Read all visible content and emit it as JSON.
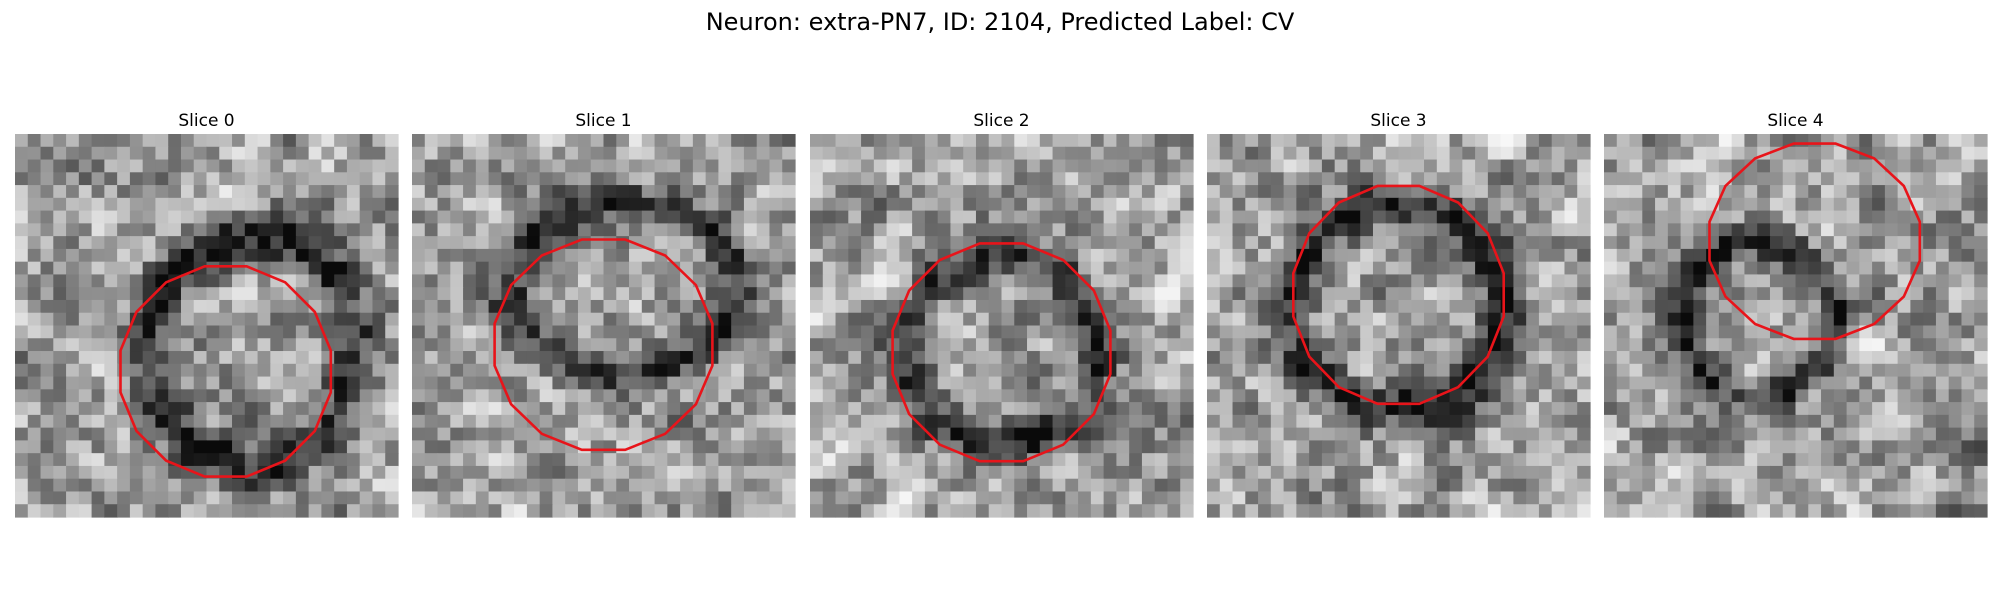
{
  "figure": {
    "title": "Neuron: extra-PN7, ID: 2104, Predicted Label: CV"
  },
  "panels": [
    {
      "title": "Slice 0",
      "contour_center": [
        0.55,
        0.62
      ],
      "contour_radius": [
        0.28,
        0.28
      ],
      "ring_center": [
        0.62,
        0.56
      ],
      "ring_radius": [
        0.27,
        0.3
      ]
    },
    {
      "title": "Slice 1",
      "contour_center": [
        0.5,
        0.55
      ],
      "contour_radius": [
        0.29,
        0.28
      ],
      "ring_center": [
        0.55,
        0.4
      ],
      "ring_radius": [
        0.3,
        0.22
      ]
    },
    {
      "title": "Slice 2",
      "contour_center": [
        0.5,
        0.57
      ],
      "contour_radius": [
        0.29,
        0.29
      ],
      "ring_center": [
        0.5,
        0.56
      ],
      "ring_radius": [
        0.25,
        0.25
      ]
    },
    {
      "title": "Slice 3",
      "contour_center": [
        0.5,
        0.42
      ],
      "contour_radius": [
        0.28,
        0.29
      ],
      "ring_center": [
        0.5,
        0.45
      ],
      "ring_radius": [
        0.28,
        0.27
      ]
    },
    {
      "title": "Slice 4",
      "contour_center": [
        0.55,
        0.28
      ],
      "contour_radius": [
        0.28,
        0.26
      ],
      "ring_center": [
        0.4,
        0.48
      ],
      "ring_radius": [
        0.2,
        0.2
      ]
    }
  ],
  "colors": {
    "contour": "#e8141a",
    "background": "#ffffff"
  },
  "grid_cells": 30
}
